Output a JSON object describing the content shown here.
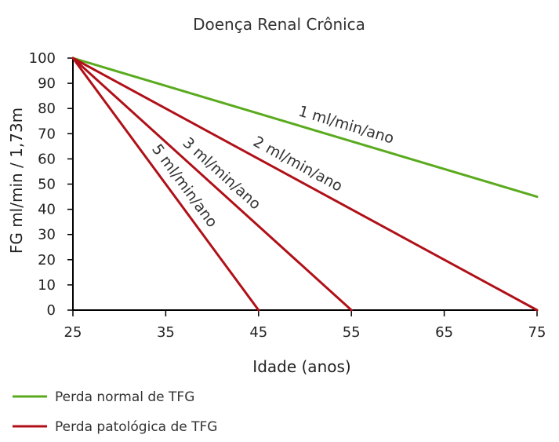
{
  "chart_data": {
    "type": "line",
    "title": "Doença Renal Crônica",
    "xlabel": "Idade (anos)",
    "ylabel": "FG ml/min / 1,73m",
    "xlim": [
      25,
      75
    ],
    "ylim": [
      0,
      100
    ],
    "xticks": [
      25,
      35,
      45,
      55,
      65,
      75
    ],
    "yticks": [
      0,
      10,
      20,
      30,
      40,
      50,
      60,
      70,
      80,
      90,
      100
    ],
    "grid": false,
    "legend_position": "bottom-left",
    "series": [
      {
        "name": "1 ml/min/ano",
        "color": "#5aaa1e",
        "points": [
          [
            25,
            100
          ],
          [
            75,
            45
          ]
        ]
      },
      {
        "name": "2 ml/min/ano",
        "color": "#b01018",
        "points": [
          [
            25,
            100
          ],
          [
            75,
            0
          ]
        ]
      },
      {
        "name": "3 ml/min/ano",
        "color": "#b01018",
        "points": [
          [
            25,
            100
          ],
          [
            55,
            0
          ]
        ]
      },
      {
        "name": "5 ml/min/ano",
        "color": "#b01018",
        "points": [
          [
            25,
            100
          ],
          [
            45,
            0
          ]
        ]
      }
    ],
    "legend": [
      {
        "label": "Perda normal de TFG",
        "color": "#5aaa1e"
      },
      {
        "label": "Perda patológica de TFG",
        "color": "#b01018"
      }
    ]
  }
}
